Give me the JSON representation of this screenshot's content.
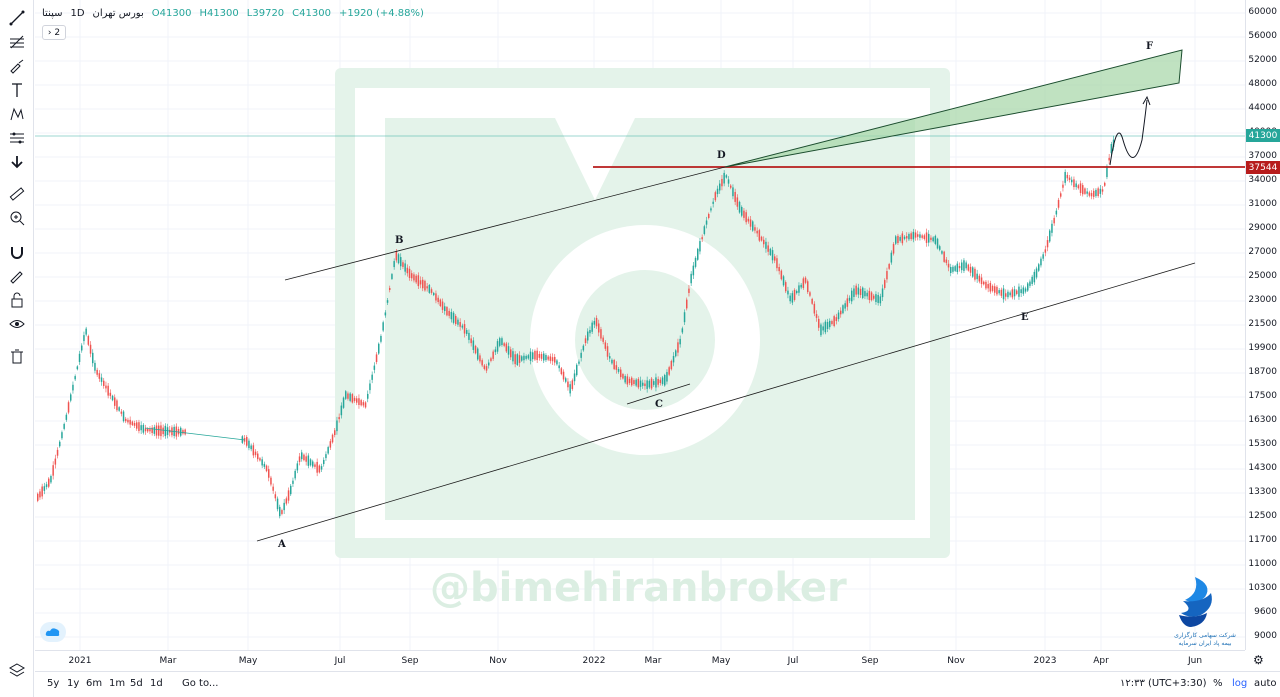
{
  "legend": {
    "symbol": "سپنتا",
    "interval": "1D",
    "exchange": "بورس تهران",
    "open": "O41300",
    "high": "H41300",
    "low": "L39720",
    "close": "C41300",
    "change": "+1920 (+4.88%)",
    "indicator_toggle": "2"
  },
  "colors": {
    "up": "#26a69a",
    "down": "#ef5350",
    "last_price_line": "#26a69a",
    "resistance_line": "#b71c1c",
    "channel_fill": "#a5d6a7",
    "watermark": "#dbeee2"
  },
  "price_scale": {
    "ticks": [
      "60000",
      "56000",
      "52000",
      "48000",
      "44000",
      "40000",
      "37000",
      "34000",
      "31000",
      "29000",
      "27000",
      "25000",
      "23000",
      "21500",
      "19900",
      "18700",
      "17500",
      "16300",
      "15300",
      "14300",
      "13300",
      "12500",
      "11700",
      "11000",
      "10300",
      "9600",
      "9000"
    ],
    "last_price_badge": "41300",
    "resistance_badge": "37544"
  },
  "time_scale": {
    "labels": [
      "2021",
      "Mar",
      "May",
      "Jul",
      "Sep",
      "Nov",
      "2022",
      "Mar",
      "May",
      "Jul",
      "Sep",
      "Nov",
      "2023",
      "Apr",
      "Jun"
    ]
  },
  "wave_labels": [
    "A",
    "B",
    "C",
    "D",
    "E",
    "F"
  ],
  "watermark_text": "@bimehiranbroker",
  "broker_caption_line1": "شرکت سهامی کارگزاری",
  "broker_caption_line2": "بیمه پاد ایران سرمایه",
  "bottom_bar": {
    "ranges": [
      "5y",
      "1y",
      "6m",
      "1m",
      "5d",
      "1d"
    ],
    "goto": "Go to...",
    "clock": "۱۲:۳۳ (UTC+3:30)",
    "percent": "%",
    "log": "log",
    "auto": "auto"
  },
  "toolbar": {
    "icons": [
      "trend-line-icon",
      "fib-icon",
      "brush-icon",
      "text-icon",
      "pattern-icon",
      "measure-icon",
      "arrow-down-icon",
      "ruler-icon",
      "zoom-in-icon",
      "magnet-icon",
      "lock-draw-icon",
      "lock-icon",
      "eye-icon",
      "trash-icon",
      "layers-icon"
    ]
  }
}
